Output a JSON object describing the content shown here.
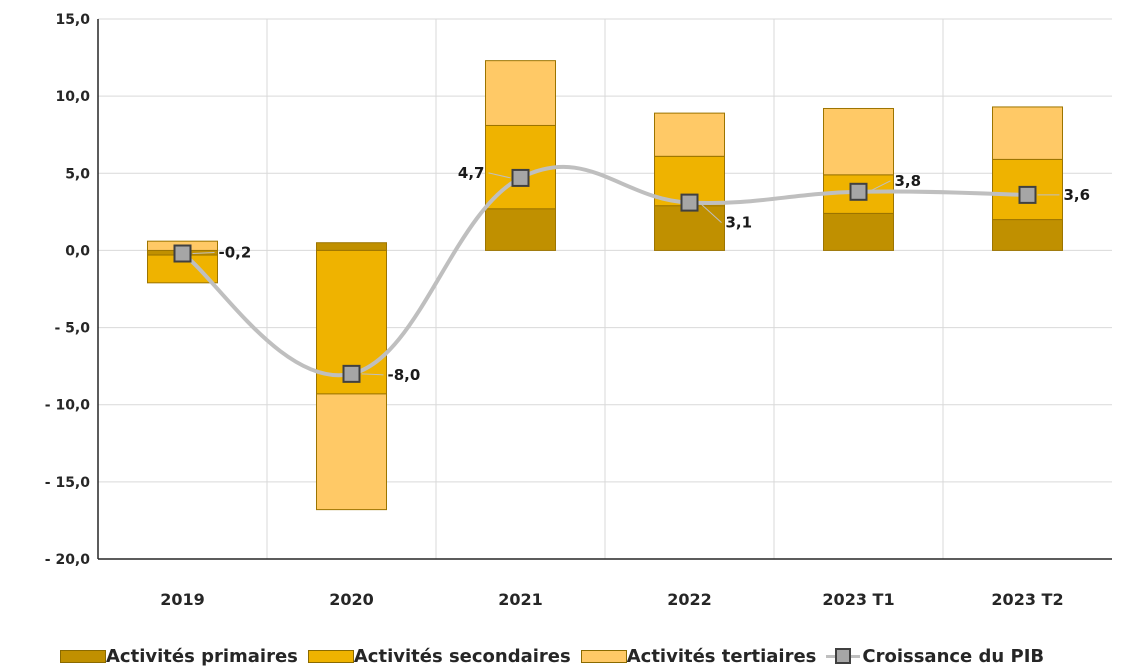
{
  "chart_data": {
    "type": "bar",
    "stacked": true,
    "categories": [
      "2019",
      "2020",
      "2021",
      "2022",
      "2023 T1",
      "2023 T2"
    ],
    "series": [
      {
        "name": "Activités primaires",
        "values": [
          -0.3,
          0.5,
          2.7,
          2.9,
          2.4,
          2.0
        ],
        "color": "#c09000"
      },
      {
        "name": "Activités secondaires",
        "values": [
          -1.8,
          -9.3,
          5.4,
          3.2,
          2.5,
          3.9
        ],
        "color": "#efb300"
      },
      {
        "name": "Activités tertiaires",
        "values": [
          0.6,
          -7.5,
          4.2,
          2.8,
          4.3,
          3.4
        ],
        "color": "#ffc966"
      }
    ],
    "line": {
      "name": "Croissance du PIB",
      "values": [
        -0.2,
        -8.0,
        4.7,
        3.1,
        3.8,
        3.6
      ],
      "labels": [
        "-0,2",
        "-8,0",
        "4,7",
        "3,1",
        "3,8",
        "3,6"
      ],
      "color": "#bfbfbf",
      "marker_color": "#a6a6a6"
    },
    "ylim": [
      -20,
      15
    ],
    "yticks": [
      15,
      10,
      5,
      0,
      -5,
      -10,
      -15,
      -20
    ],
    "ytick_labels": [
      "15,0",
      "10,0",
      "5,0",
      "0,0",
      "-   5,0",
      "-  10,0",
      "-  15,0",
      "-  20,0"
    ],
    "grid": true,
    "legend_position": "bottom",
    "title": "",
    "xlabel": "",
    "ylabel": ""
  }
}
